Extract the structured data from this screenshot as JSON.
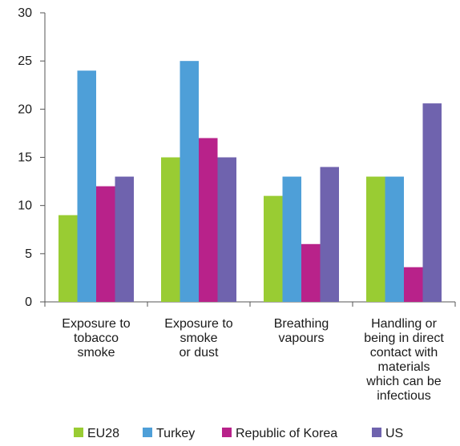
{
  "chart_data": {
    "type": "bar",
    "title": "",
    "xlabel": "",
    "ylabel": "",
    "ylim": [
      0,
      30
    ],
    "yticks": [
      0,
      5,
      10,
      15,
      20,
      25,
      30
    ],
    "grid": false,
    "legend_position": "bottom",
    "categories": [
      [
        "Exposure to",
        "tobacco",
        "smoke"
      ],
      [
        "Exposure to",
        "smoke",
        "or dust"
      ],
      [
        "Breathing",
        "vapours"
      ],
      [
        "Handling or",
        "being in direct",
        "contact with",
        "materials",
        "which can be",
        "infectious"
      ]
    ],
    "series": [
      {
        "name": "EU28",
        "color": "#99cc33",
        "values": [
          9,
          15,
          11,
          13
        ]
      },
      {
        "name": "Turkey",
        "color": "#4e9fd8",
        "values": [
          24,
          25,
          13,
          13
        ]
      },
      {
        "name": "Republic of Korea",
        "color": "#b8228a",
        "values": [
          12,
          17,
          6,
          3.6
        ]
      },
      {
        "name": "US",
        "color": "#6f63ae",
        "values": [
          13,
          15,
          14,
          20.6
        ]
      }
    ]
  }
}
